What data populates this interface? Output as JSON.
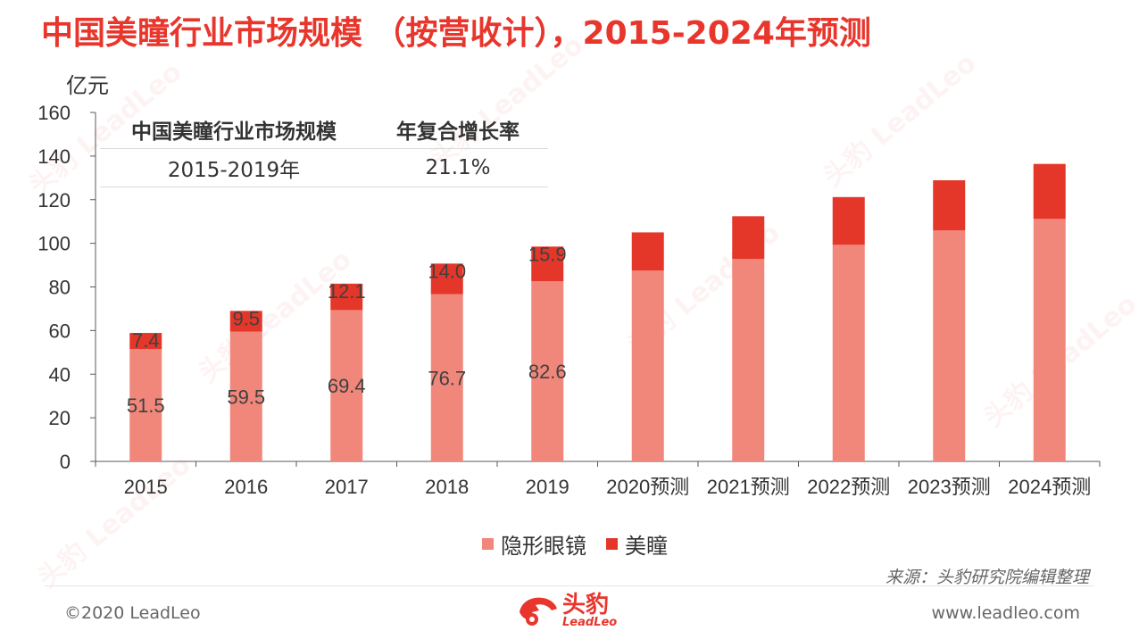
{
  "title": "中国美瞳行业市场规模 （按营收计），2015-2024年预测",
  "y_unit": "亿元",
  "cagr_table": {
    "header": [
      "中国美瞳行业市场规模",
      "年复合增长率"
    ],
    "row": [
      "2015-2019年",
      "21.1%"
    ]
  },
  "chart_data": {
    "type": "bar",
    "stacked": true,
    "categories": [
      "2015",
      "2016",
      "2017",
      "2018",
      "2019",
      "2020预测",
      "2021预测",
      "2022预测",
      "2023预测",
      "2024预测"
    ],
    "series": [
      {
        "name": "隐形眼镜",
        "color": "#f0877a",
        "values": [
          51.5,
          59.5,
          69.4,
          76.7,
          82.6,
          87.5,
          92.8,
          99.3,
          105.9,
          111.2
        ],
        "labels": [
          "51.5",
          "59.5",
          "69.4",
          "76.7",
          "82.6",
          null,
          null,
          null,
          null,
          null
        ]
      },
      {
        "name": "美瞳",
        "color": "#e5362a",
        "values": [
          7.4,
          9.5,
          12.1,
          14.0,
          15.9,
          17.5,
          19.6,
          21.9,
          23.0,
          25.2
        ],
        "labels": [
          "7.4",
          "9.5",
          "12.1",
          "14.0",
          "15.9",
          null,
          null,
          null,
          null,
          null
        ]
      }
    ],
    "ylim": [
      0,
      160
    ],
    "yticks": [
      "0",
      "20",
      "40",
      "60",
      "80",
      "100",
      "120",
      "140",
      "160"
    ],
    "grid": false,
    "legend_position": "bottom"
  },
  "legend": {
    "items": [
      "隐形眼镜",
      "美瞳"
    ]
  },
  "source": "来源：头豹研究院编辑整理",
  "footer": {
    "copyright": "©2020 LeadLeo",
    "website": "www.leadleo.com",
    "logo_cn": "头豹",
    "logo_en": "LeadLeo"
  },
  "watermark_text": "头豹 LeadLeo"
}
